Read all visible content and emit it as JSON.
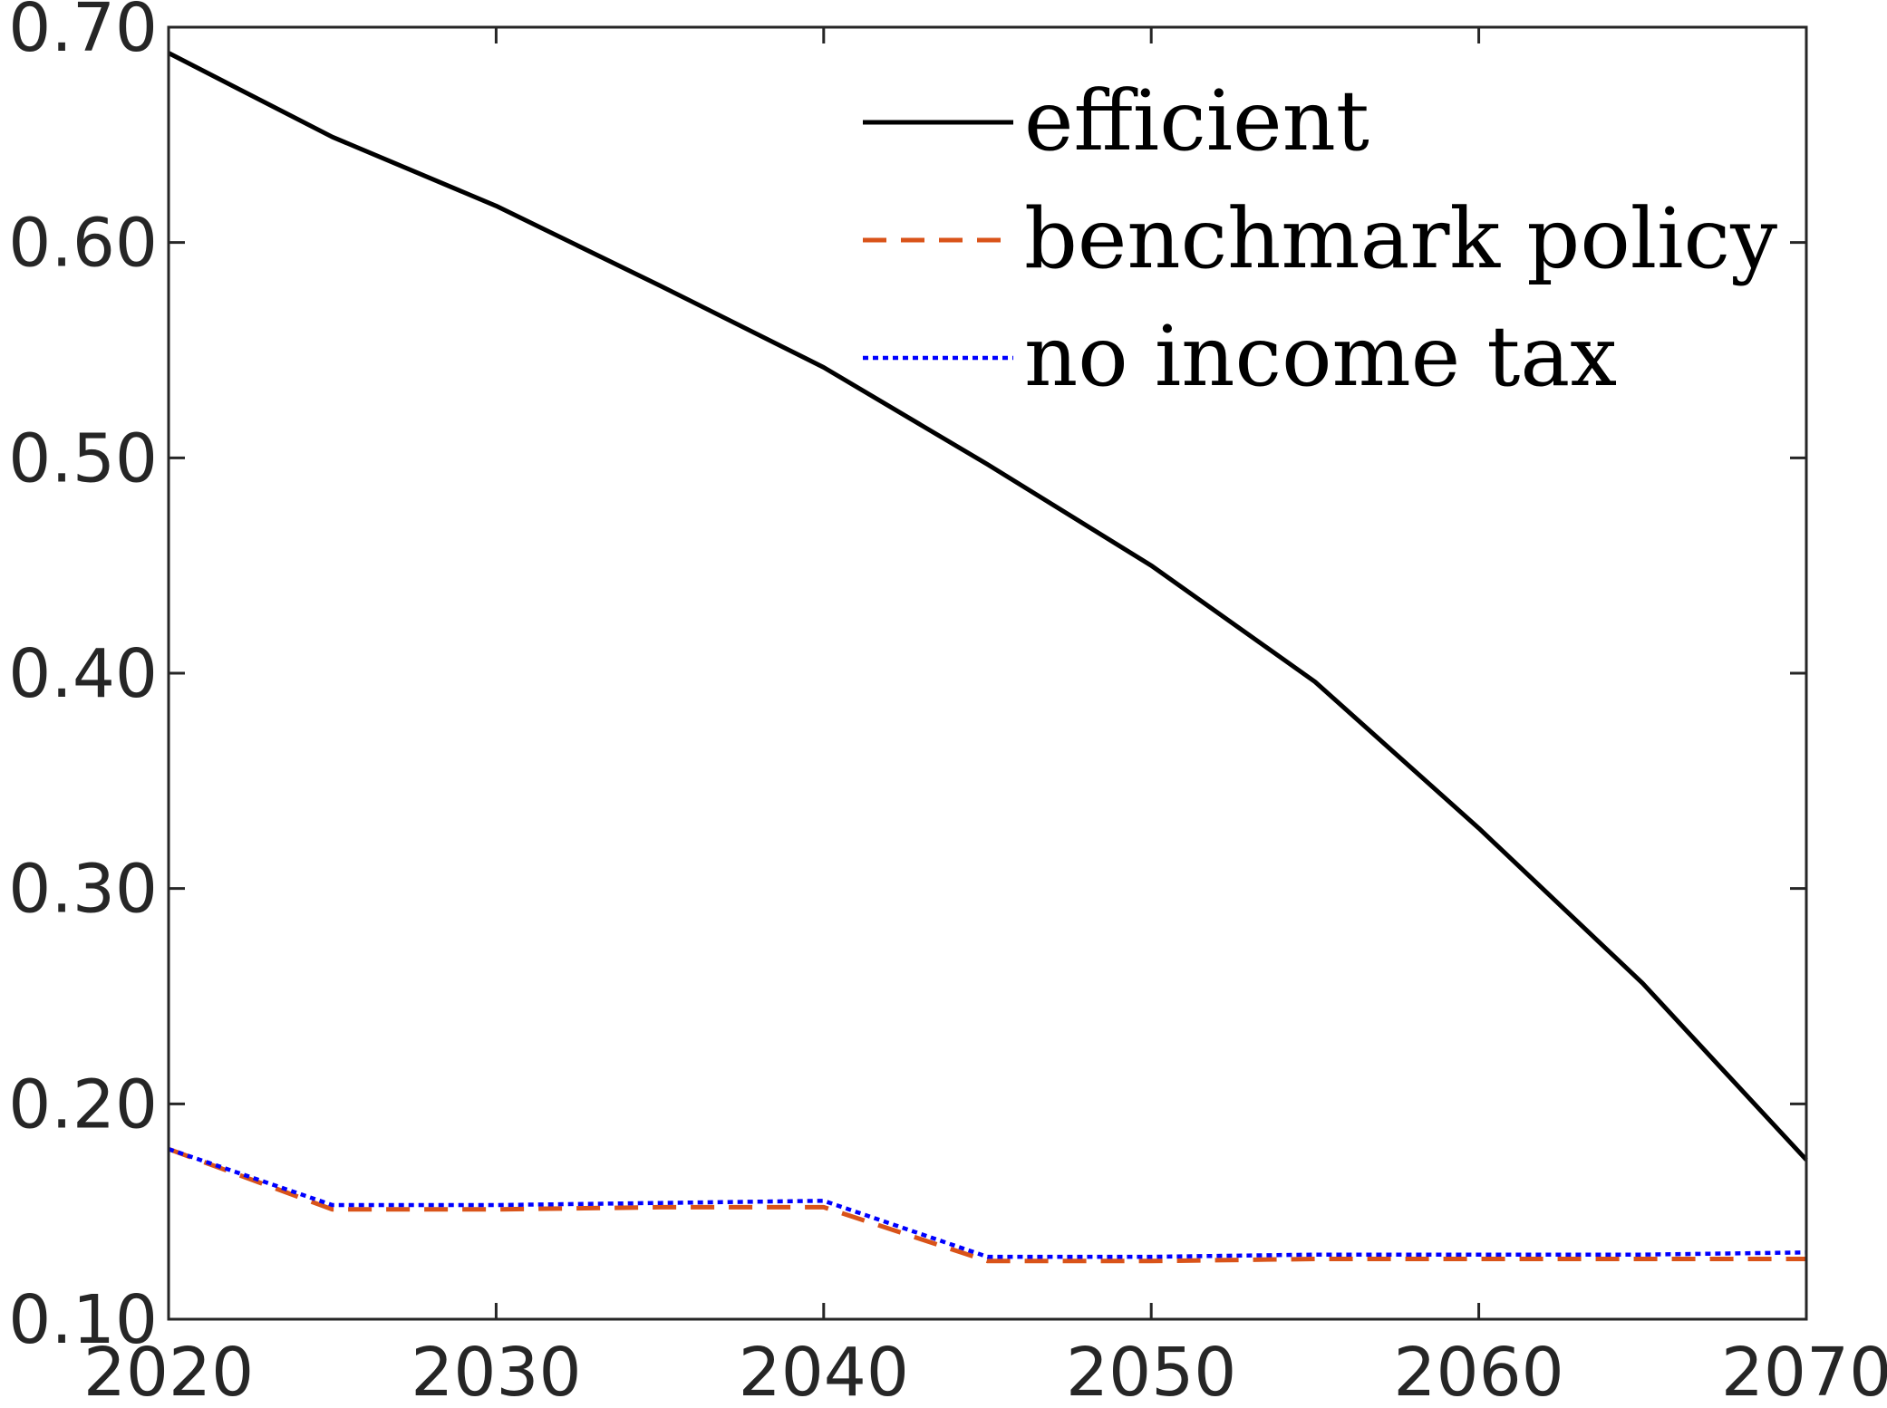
{
  "chart_data": {
    "type": "line",
    "title": "",
    "xlabel": "",
    "ylabel": "",
    "xlim": [
      2020,
      2070
    ],
    "ylim": [
      0.1,
      0.7
    ],
    "x_ticks": [
      "2020",
      "2030",
      "2040",
      "2050",
      "2060",
      "2070"
    ],
    "y_ticks": [
      "0.10",
      "0.20",
      "0.30",
      "0.40",
      "0.50",
      "0.60",
      "0.70"
    ],
    "grid": false,
    "legend_position": "top-right",
    "x": [
      2020,
      2025,
      2030,
      2035,
      2040,
      2045,
      2050,
      2055,
      2060,
      2065,
      2070
    ],
    "series": [
      {
        "name": "efficient",
        "color": "#000000",
        "style": "solid",
        "values": [
          0.688,
          0.649,
          0.617,
          0.58,
          0.542,
          0.497,
          0.45,
          0.396,
          0.328,
          0.256,
          0.174
        ]
      },
      {
        "name": "benchmark policy",
        "color": "#D95319",
        "style": "dashed",
        "values": [
          0.179,
          0.151,
          0.151,
          0.152,
          0.152,
          0.127,
          0.127,
          0.128,
          0.128,
          0.128,
          0.128
        ]
      },
      {
        "name": "no income tax",
        "color": "#0000FF",
        "style": "dotted",
        "values": [
          0.179,
          0.153,
          0.153,
          0.154,
          0.155,
          0.129,
          0.129,
          0.13,
          0.13,
          0.13,
          0.131
        ]
      }
    ]
  }
}
